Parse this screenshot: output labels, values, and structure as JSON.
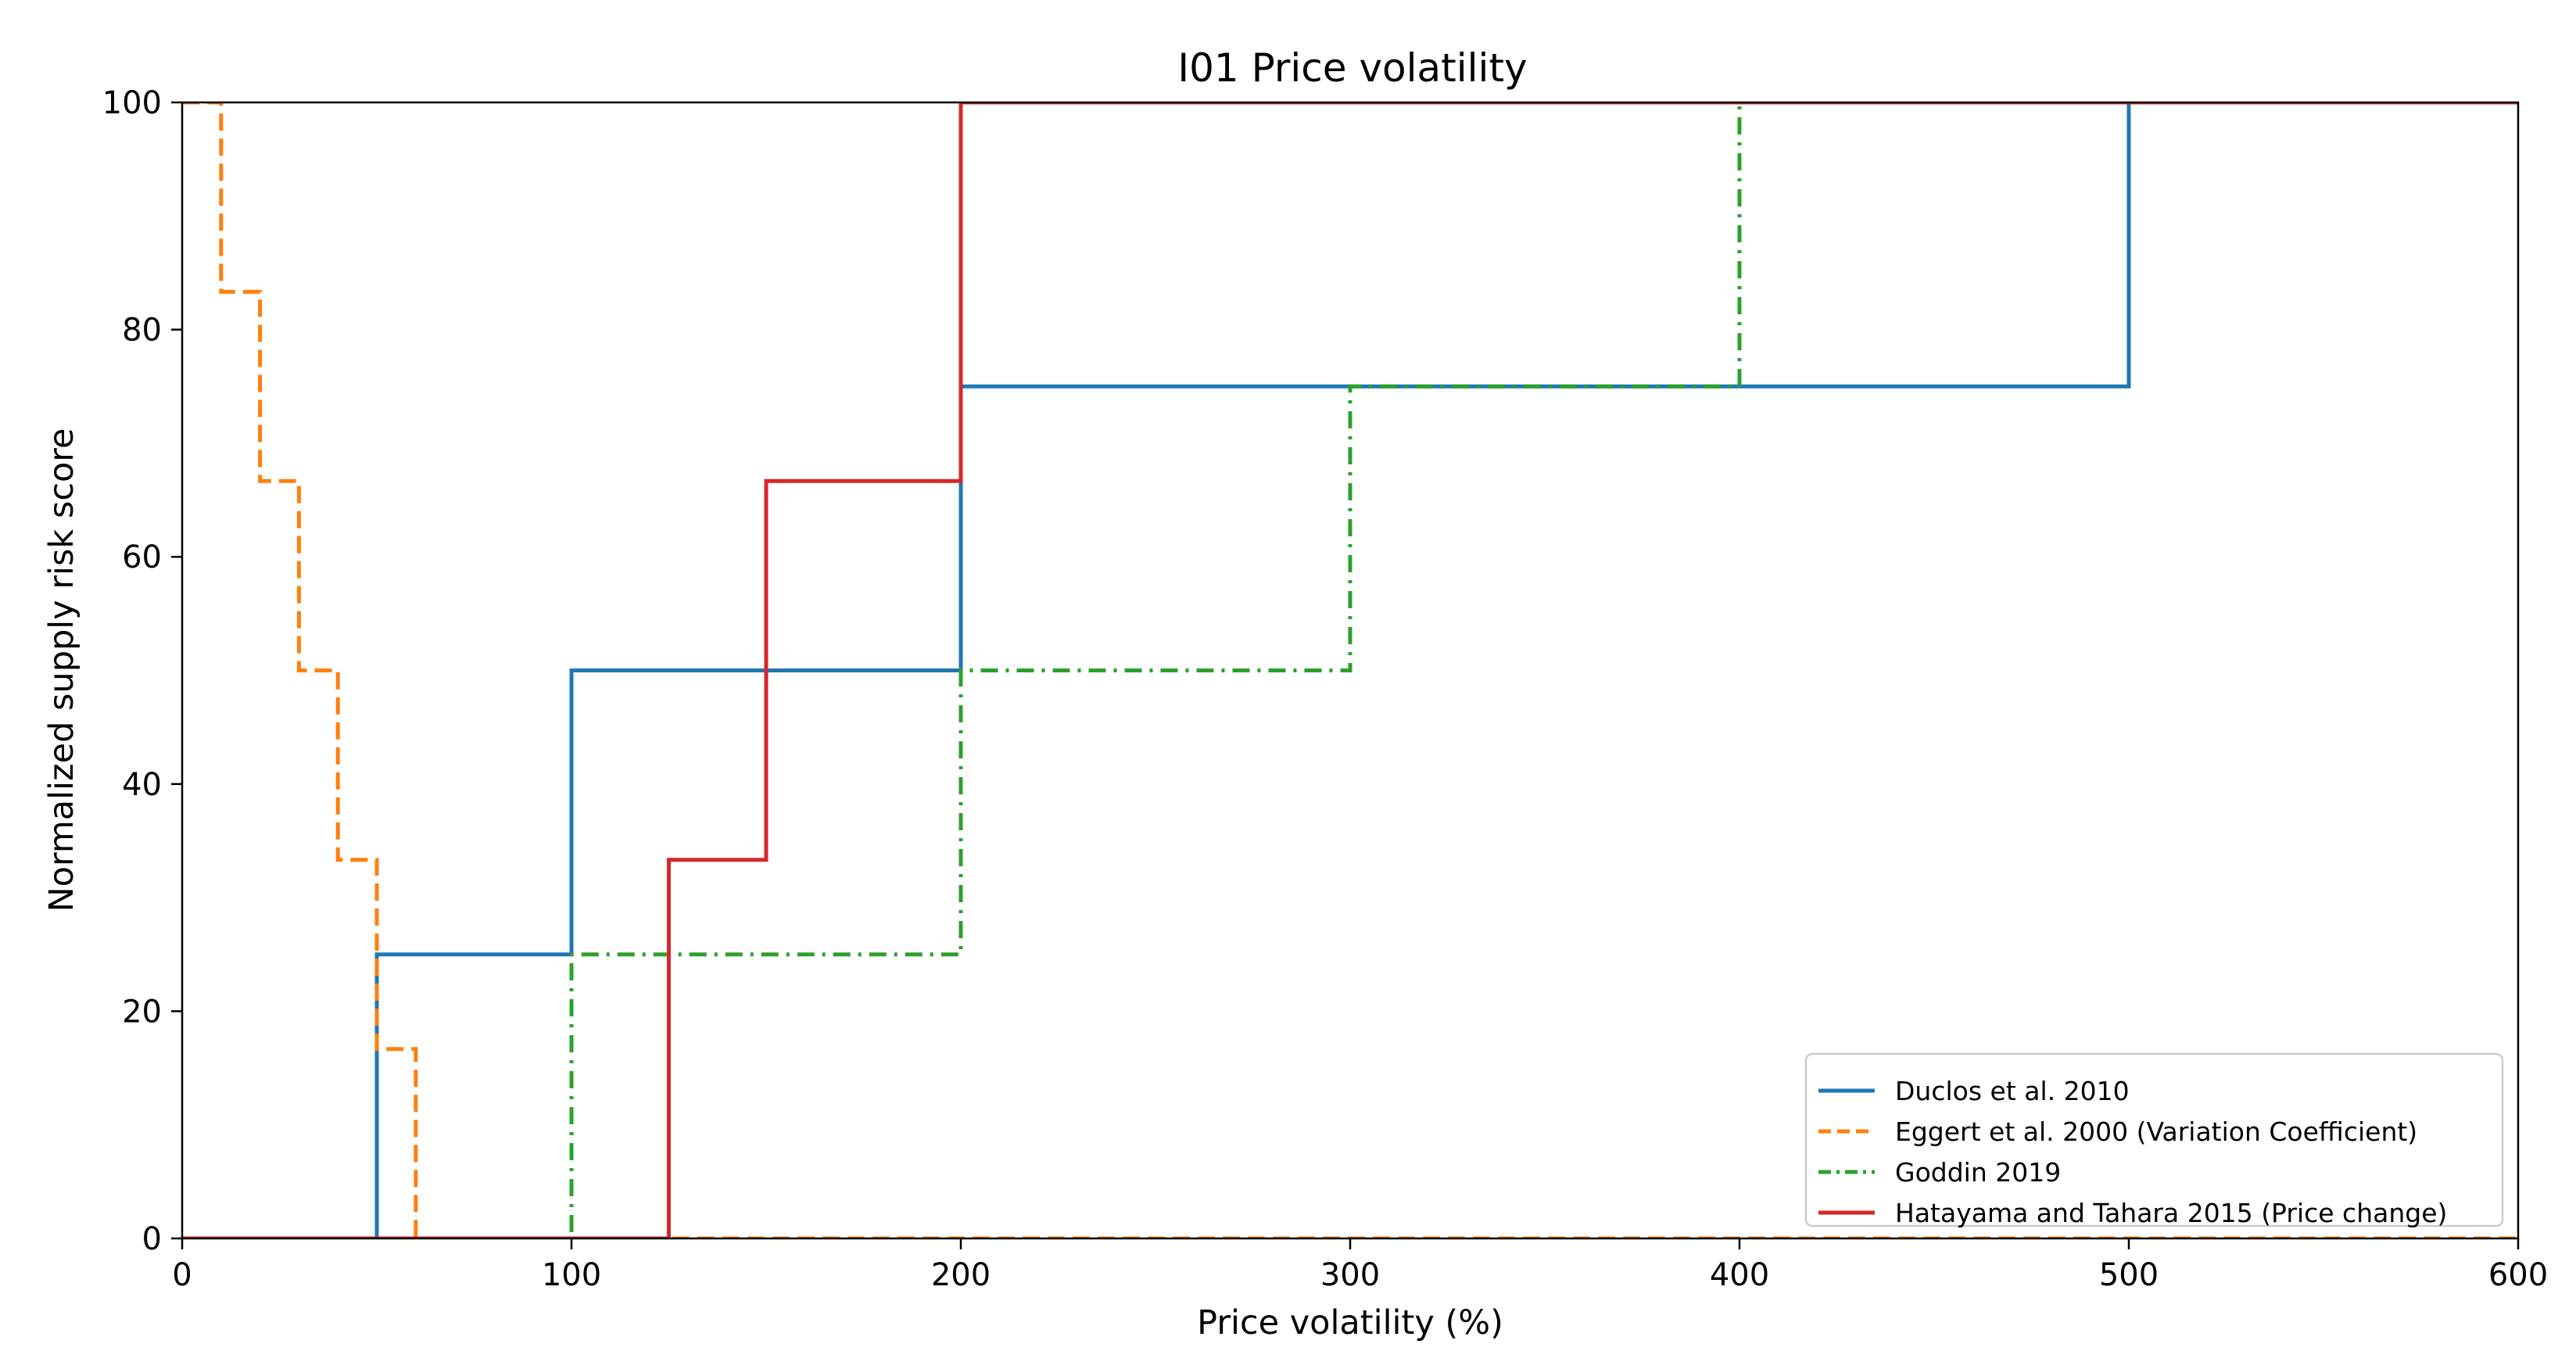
{
  "chart_data": {
    "type": "line",
    "title": "I01 Price volatility",
    "xlabel": "Price volatility (%)",
    "ylabel": "Normalized supply risk score",
    "xlim": [
      0,
      600
    ],
    "ylim": [
      0,
      100
    ],
    "xticks": [
      0,
      100,
      200,
      300,
      400,
      500,
      600
    ],
    "yticks": [
      0,
      20,
      40,
      60,
      80,
      100
    ],
    "xtick_labels": [
      "0",
      "100",
      "200",
      "300",
      "400",
      "500",
      "600"
    ],
    "ytick_labels": [
      "0",
      "20",
      "40",
      "60",
      "80",
      "100"
    ],
    "grid": false,
    "legend_position": "lower-right",
    "series": [
      {
        "name": "Duclos et al. 2010",
        "color": "#1f77b4",
        "style": "solid",
        "x": [
          0,
          50,
          50,
          100,
          100,
          200,
          200,
          500,
          500,
          600
        ],
        "y": [
          0,
          0,
          25,
          25,
          50,
          50,
          75,
          75,
          100,
          100
        ]
      },
      {
        "name": "Eggert et al. 2000 (Variation Coefficient)",
        "color": "#ff7f0e",
        "style": "dashed",
        "x": [
          0,
          10,
          10,
          20,
          20,
          30,
          30,
          40,
          40,
          50,
          50,
          60,
          60,
          600
        ],
        "y": [
          100,
          100,
          83.33,
          83.33,
          66.67,
          66.67,
          50,
          50,
          33.33,
          33.33,
          16.67,
          16.67,
          0,
          0
        ]
      },
      {
        "name": "Goddin 2019",
        "color": "#2ca02c",
        "style": "dashdot",
        "x": [
          0,
          100,
          100,
          200,
          200,
          300,
          300,
          400,
          400,
          600
        ],
        "y": [
          0,
          0,
          25,
          25,
          50,
          50,
          75,
          75,
          100,
          100
        ]
      },
      {
        "name": "Hatayama and Tahara 2015 (Price change)",
        "color": "#d62728",
        "style": "solid",
        "x": [
          0,
          125,
          125,
          150,
          150,
          200,
          200,
          600
        ],
        "y": [
          0,
          0,
          33.33,
          33.33,
          66.67,
          66.67,
          100,
          100
        ]
      }
    ]
  }
}
